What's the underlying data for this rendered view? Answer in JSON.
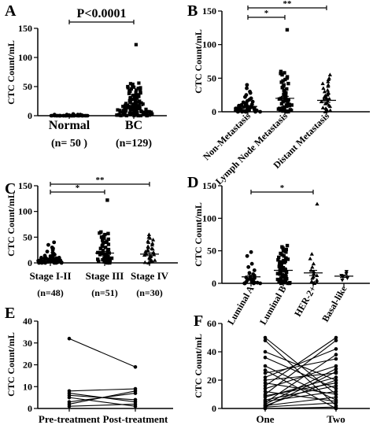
{
  "panels": [
    {
      "letter": "A",
      "chart_data": {
        "type": "scatter",
        "ylabel": "CTC Count/mL",
        "ylim": [
          0,
          150
        ],
        "yticks": [
          0,
          50,
          100,
          150
        ],
        "groups": [
          {
            "label": "Normal",
            "n_label": "(n= 50 )",
            "marker": "circle",
            "values": [
              0,
              0,
              0,
              0,
              0,
              0,
              0,
              0,
              0,
              0,
              0,
              0,
              0,
              0,
              0,
              0,
              0,
              0,
              0,
              0,
              0,
              0,
              0,
              0,
              0,
              0,
              0,
              0,
              0,
              0,
              0,
              0,
              0,
              0,
              0,
              0,
              0,
              0,
              0,
              0,
              1,
              1,
              1,
              1,
              1,
              2,
              2,
              2,
              2,
              3
            ],
            "mean": 0.5,
            "sem": 0.1
          },
          {
            "label": "BC",
            "n_label": "(n=129)",
            "marker": "square",
            "values": [
              0,
              0,
              0,
              0,
              0,
              0,
              0,
              0,
              1,
              1,
              1,
              1,
              1,
              1,
              2,
              2,
              2,
              2,
              2,
              2,
              3,
              3,
              3,
              3,
              3,
              3,
              4,
              4,
              4,
              4,
              4,
              5,
              5,
              5,
              5,
              5,
              6,
              6,
              6,
              6,
              6,
              7,
              7,
              7,
              7,
              8,
              8,
              8,
              8,
              9,
              9,
              9,
              9,
              10,
              10,
              10,
              10,
              11,
              11,
              11,
              12,
              12,
              12,
              13,
              13,
              13,
              14,
              14,
              14,
              15,
              15,
              15,
              16,
              16,
              16,
              17,
              17,
              18,
              18,
              19,
              19,
              20,
              20,
              21,
              21,
              22,
              22,
              23,
              23,
              24,
              24,
              25,
              25,
              26,
              27,
              28,
              29,
              30,
              30,
              31,
              32,
              33,
              34,
              35,
              35,
              36,
              37,
              38,
              39,
              40,
              40,
              41,
              42,
              43,
              44,
              45,
              45,
              46,
              47,
              48,
              48,
              49,
              50,
              50,
              52,
              54,
              55,
              56,
              122
            ],
            "mean": 17,
            "sem": 2
          }
        ],
        "annotations": [
          {
            "text": "P<0.0001",
            "from": 0,
            "to": 1
          }
        ]
      }
    },
    {
      "letter": "B",
      "chart_data": {
        "type": "scatter",
        "ylabel": "CTC Count/mL",
        "ylim": [
          0,
          150
        ],
        "yticks": [
          0,
          50,
          100,
          150
        ],
        "groups": [
          {
            "label": "Non-Metastasis",
            "marker": "circle",
            "values": [
              0,
              0,
              0,
              0,
              0,
              0,
              1,
              1,
              1,
              1,
              2,
              2,
              2,
              2,
              3,
              3,
              3,
              4,
              4,
              4,
              5,
              5,
              5,
              6,
              6,
              6,
              7,
              7,
              8,
              8,
              9,
              9,
              10,
              10,
              11,
              12,
              13,
              14,
              15,
              16,
              18,
              20,
              22,
              25,
              28,
              30,
              35,
              40
            ],
            "mean": 8,
            "sem": 1.5
          },
          {
            "label": "Lymph Node Metastasis",
            "marker": "square",
            "values": [
              0,
              0,
              1,
              1,
              2,
              2,
              3,
              3,
              4,
              5,
              6,
              7,
              8,
              9,
              10,
              10,
              11,
              12,
              13,
              14,
              15,
              16,
              17,
              18,
              19,
              20,
              20,
              22,
              24,
              25,
              26,
              28,
              30,
              32,
              34,
              36,
              38,
              40,
              42,
              44,
              46,
              48,
              50,
              52,
              55,
              57,
              58,
              60,
              122
            ],
            "mean": 20,
            "sem": 3
          },
          {
            "label": "Distant Metastasis",
            "marker": "triangle",
            "values": [
              0,
              1,
              2,
              3,
              5,
              6,
              8,
              10,
              12,
              13,
              15,
              16,
              18,
              19,
              20,
              22,
              24,
              25,
              27,
              28,
              30,
              32,
              35,
              38,
              40,
              42,
              45,
              48,
              50,
              55
            ],
            "mean": 17,
            "sem": 3
          }
        ],
        "annotations": [
          {
            "text": "*",
            "from": 0,
            "to": 1
          },
          {
            "text": "**",
            "from": 0,
            "to": 2
          }
        ]
      }
    },
    {
      "letter": "C",
      "chart_data": {
        "type": "scatter",
        "ylabel": "CTC Count/mL",
        "ylim": [
          0,
          150
        ],
        "yticks": [
          0,
          50,
          100,
          150
        ],
        "groups": [
          {
            "label": "Stage I-II",
            "n_label": "(n=48)",
            "marker": "circle",
            "values": [
              0,
              0,
              0,
              0,
              0,
              0,
              1,
              1,
              1,
              1,
              2,
              2,
              2,
              2,
              3,
              3,
              3,
              4,
              4,
              4,
              5,
              5,
              5,
              6,
              6,
              6,
              7,
              7,
              8,
              8,
              9,
              9,
              10,
              10,
              11,
              12,
              13,
              14,
              15,
              16,
              18,
              20,
              22,
              25,
              28,
              30,
              35,
              40
            ],
            "mean": 8,
            "sem": 1.5
          },
          {
            "label": "Stage III",
            "n_label": "(n=51)",
            "marker": "square",
            "values": [
              0,
              0,
              1,
              1,
              2,
              2,
              3,
              3,
              4,
              5,
              6,
              7,
              8,
              9,
              10,
              10,
              11,
              12,
              13,
              14,
              15,
              16,
              17,
              18,
              19,
              20,
              20,
              22,
              24,
              25,
              26,
              28,
              30,
              32,
              34,
              36,
              38,
              40,
              42,
              44,
              46,
              48,
              50,
              52,
              55,
              57,
              58,
              60,
              5,
              8,
              122
            ],
            "mean": 19,
            "sem": 3
          },
          {
            "label": "Stage IV",
            "n_label": "(n=30)",
            "marker": "triangle",
            "values": [
              0,
              1,
              2,
              3,
              5,
              6,
              8,
              10,
              12,
              13,
              15,
              16,
              18,
              19,
              20,
              22,
              24,
              25,
              27,
              28,
              30,
              32,
              35,
              38,
              40,
              42,
              45,
              48,
              50,
              55
            ],
            "mean": 17,
            "sem": 3
          }
        ],
        "annotations": [
          {
            "text": "*",
            "from": 0,
            "to": 1
          },
          {
            "text": "**",
            "from": 0,
            "to": 2
          }
        ]
      }
    },
    {
      "letter": "D",
      "chart_data": {
        "type": "scatter",
        "ylabel": "CTC Count/mL",
        "ylim": [
          0,
          150
        ],
        "yticks": [
          0,
          50,
          100,
          150
        ],
        "groups": [
          {
            "label": "Luminal A",
            "marker": "circle",
            "values": [
              0,
              0,
              0,
              0,
              1,
              1,
              2,
              2,
              3,
              3,
              4,
              5,
              6,
              7,
              8,
              9,
              10,
              12,
              14,
              16,
              20,
              25,
              30,
              42,
              48
            ],
            "mean": 10,
            "sem": 2.5
          },
          {
            "label": "Luminal B",
            "marker": "square",
            "values": [
              0,
              0,
              0,
              1,
              1,
              2,
              2,
              3,
              3,
              4,
              5,
              6,
              7,
              8,
              9,
              10,
              11,
              12,
              13,
              14,
              15,
              16,
              17,
              18,
              19,
              20,
              21,
              22,
              23,
              24,
              25,
              26,
              27,
              28,
              29,
              30,
              31,
              32,
              33,
              34,
              35,
              36,
              37,
              38,
              39,
              40,
              42,
              44,
              46,
              48,
              50,
              52,
              54,
              56,
              58
            ],
            "mean": 20,
            "sem": 2
          },
          {
            "label": "HER-2+",
            "marker": "triangle",
            "values": [
              0,
              1,
              2,
              3,
              5,
              8,
              10,
              12,
              15,
              18,
              20,
              25,
              30,
              38,
              45,
              122
            ],
            "mean": 16,
            "sem": 4
          },
          {
            "label": "Basal-like",
            "marker": "invtriangle",
            "values": [
              5,
              8,
              10,
              12,
              15,
              18
            ],
            "mean": 11,
            "sem": 2
          }
        ],
        "annotations": [
          {
            "text": "*",
            "from": 0,
            "to": 2
          }
        ]
      }
    },
    {
      "letter": "E",
      "chart_data": {
        "type": "line",
        "ylabel": "CTC Count/mL",
        "ylim": [
          0,
          40
        ],
        "yticks": [
          0,
          10,
          20,
          30,
          40
        ],
        "categories": [
          "Pre-treatment",
          "Post-treatment"
        ],
        "pairs": [
          [
            32,
            19
          ],
          [
            8,
            9
          ],
          [
            7,
            3
          ],
          [
            6,
            4
          ],
          [
            5,
            1
          ],
          [
            3,
            7
          ],
          [
            2,
            8
          ],
          [
            1,
            2
          ]
        ]
      }
    },
    {
      "letter": "F",
      "chart_data": {
        "type": "line",
        "ylabel": "CTC Count/mL",
        "ylim": [
          0,
          60
        ],
        "yticks": [
          0,
          20,
          40,
          60
        ],
        "categories": [
          "One",
          "Two"
        ],
        "pairs": [
          [
            50,
            10
          ],
          [
            48,
            2
          ],
          [
            40,
            20
          ],
          [
            36,
            14
          ],
          [
            30,
            6
          ],
          [
            27,
            0
          ],
          [
            25,
            35
          ],
          [
            22,
            42
          ],
          [
            20,
            25
          ],
          [
            18,
            10
          ],
          [
            16,
            50
          ],
          [
            14,
            30
          ],
          [
            12,
            5
          ],
          [
            10,
            48
          ],
          [
            9,
            18
          ],
          [
            8,
            22
          ],
          [
            6,
            16
          ],
          [
            5,
            12
          ],
          [
            4,
            38
          ],
          [
            3,
            28
          ],
          [
            2,
            20
          ],
          [
            2,
            8
          ],
          [
            1,
            4
          ],
          [
            1,
            26
          ],
          [
            0,
            1
          ]
        ]
      }
    }
  ]
}
